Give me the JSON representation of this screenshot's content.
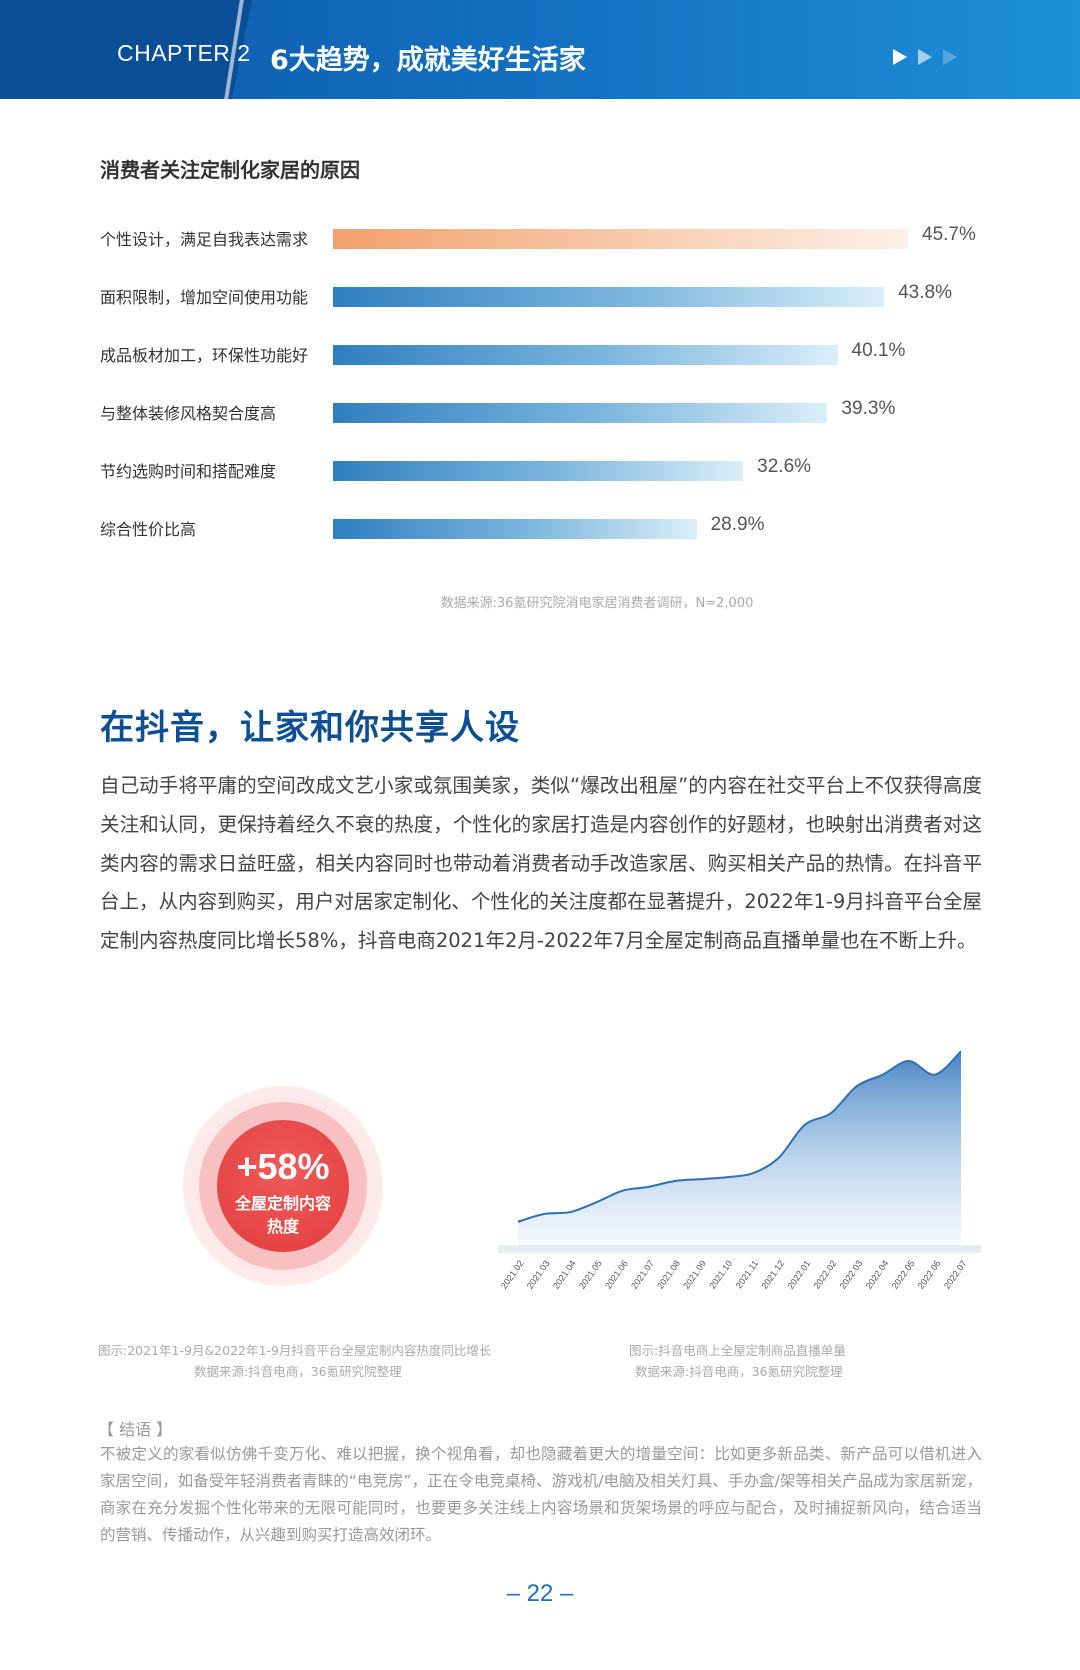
{
  "header": {
    "chapter": "CHAPTER 2",
    "title": "6大趋势，成就美好生活家"
  },
  "reasons": {
    "title": "消费者关注定制化家居的原因",
    "items": [
      {
        "label": "个性设计，满足自我表达需求",
        "value": 45.7,
        "display": "45.7%"
      },
      {
        "label": "面积限制，增加空间使用功能",
        "value": 43.8,
        "display": "43.8%"
      },
      {
        "label": "成品板材加工，环保性功能好",
        "value": 40.1,
        "display": "40.1%"
      },
      {
        "label": "与整体装修风格契合度高",
        "value": 39.3,
        "display": "39.3%"
      },
      {
        "label": "节约选购时间和搭配难度",
        "value": 32.6,
        "display": "32.6%"
      },
      {
        "label": "综合性价比高",
        "value": 28.9,
        "display": "28.9%"
      }
    ],
    "source": "数据来源:36氪研究院消电家居消费者调研，N=2,000",
    "highlight_color": "#f2a06c",
    "bar_color": "#2f7fc0"
  },
  "douyin": {
    "heading": "在抖音，让家和你共享人设",
    "paragraph": "自己动手将平庸的空间改成文艺小家或氛围美家，类似“爆改出租屋”的内容在社交平台上不仅获得高度关注和认同，更保持着经久不衰的热度，个性化的家居打造是内容创作的好题材，也映射出消费者对这类内容的需求日益旺盛，相关内容同时也带动着消费者动手改造家居、购买相关产品的热情。在抖音平台上，从内容到购买，用户对居家定制化、个性化的关注度都在显著提升，2022年1-9月抖音平台全屋定制内容热度同比增长58%，抖音电商2021年2月-2022年7月全屋定制商品直播单量也在不断上升。"
  },
  "circle": {
    "value": "+58%",
    "line1": "全屋定制内容",
    "line2": "热度",
    "caption": "图示:2021年1-9月&2022年1-9月抖音平台全屋定制内容热度同比增长",
    "source": "数据来源:抖音电商，36氪研究院整理"
  },
  "chart_data": {
    "type": "area",
    "x": [
      "2021.02",
      "2021.03",
      "2021.04",
      "2021.05",
      "2021.06",
      "2021.07",
      "2021.08",
      "2021.09",
      "2021.10",
      "2021.11",
      "2021.12",
      "2022.01",
      "2022.02",
      "2022.03",
      "2022.04",
      "2022.05",
      "2022.06",
      "2022.07"
    ],
    "values": [
      12,
      16,
      17,
      22,
      28,
      30,
      33,
      34,
      35,
      37,
      45,
      62,
      68,
      82,
      88,
      95,
      88,
      100
    ],
    "ylim": [
      0,
      110
    ],
    "grid": false,
    "caption": "图示:抖音电商上全屋定制商品直播单量",
    "source": "数据来源:抖音电商，36氪研究院整理",
    "color": "#2f6fb5"
  },
  "conclusion": {
    "heading": "【 结语 】",
    "text": "不被定义的家看似仿佛千变万化、难以把握，换个视角看，却也隐藏着更大的增量空间：比如更多新品类、新产品可以借机进入家居空间，如备受年轻消费者青睐的“电竞房”，正在令电竞桌椅、游戏机/电脑及相关灯具、手办盒/架等相关产品成为家居新宠，商家在充分发掘个性化带来的无限可能同时，也要更多关注线上内容场景和货架场景的呼应与配合，及时捕捉新风向，结合适当的营销、传播动作，从兴趣到购买打造高效闭环。"
  },
  "page": {
    "number": "– 22 –"
  }
}
